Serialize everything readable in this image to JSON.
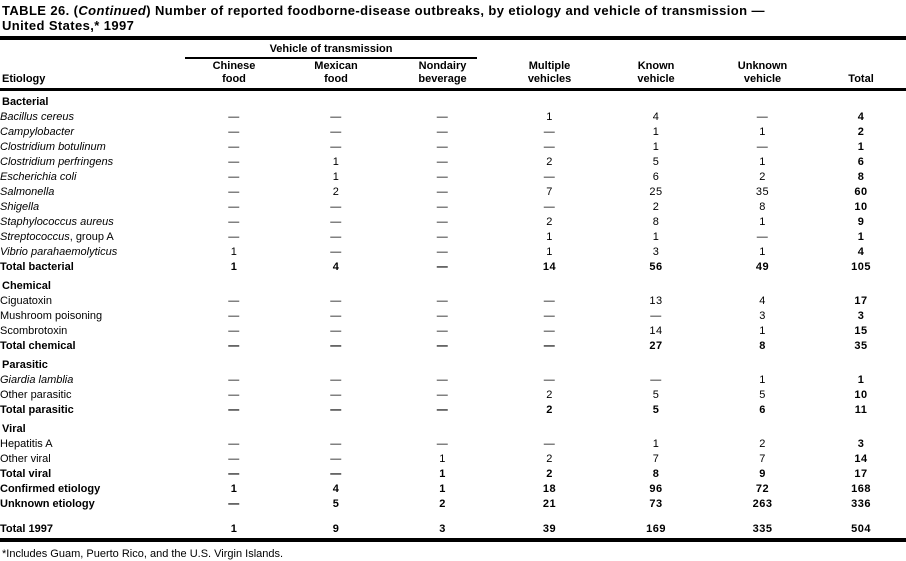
{
  "title": {
    "line1_part1": "TABLE 26. (",
    "line1_italic": "Continued",
    "line1_part2": ") Number of reported foodborne-disease outbreaks, by etiology and vehicle of transmission —",
    "line2": "United States,* 1997"
  },
  "header": {
    "group_label": "Vehicle of transmission",
    "etiology_label": "Etiology",
    "columns": [
      {
        "line1": "Chinese",
        "line2": "food"
      },
      {
        "line1": "Mexican",
        "line2": "food"
      },
      {
        "line1": "Nondairy",
        "line2": "beverage"
      },
      {
        "line1": "Multiple",
        "line2": "vehicles"
      },
      {
        "line1": "Known",
        "line2": "vehicle"
      },
      {
        "line1": "Unknown",
        "line2": "vehicle"
      },
      {
        "line1": "",
        "line2": "Total"
      }
    ]
  },
  "sections": [
    {
      "label": "Bacterial",
      "rows": [
        {
          "name": "Bacillus cereus",
          "suffix": "",
          "italic": true,
          "bold": false,
          "indent": true,
          "values": [
            "—",
            "—",
            "—",
            "1",
            "4",
            "—",
            "4"
          ]
        },
        {
          "name": "Campylobacter",
          "suffix": "",
          "italic": true,
          "bold": false,
          "indent": true,
          "values": [
            "—",
            "—",
            "—",
            "—",
            "1",
            "1",
            "2"
          ]
        },
        {
          "name": "Clostridium botulinum",
          "suffix": "",
          "italic": true,
          "bold": false,
          "indent": true,
          "values": [
            "—",
            "—",
            "—",
            "—",
            "1",
            "—",
            "1"
          ]
        },
        {
          "name": "Clostridium perfringens",
          "suffix": "",
          "italic": true,
          "bold": false,
          "indent": true,
          "values": [
            "—",
            "1",
            "—",
            "2",
            "5",
            "1",
            "6"
          ]
        },
        {
          "name": "Escherichia coli",
          "suffix": "",
          "italic": true,
          "bold": false,
          "indent": true,
          "values": [
            "—",
            "1",
            "—",
            "—",
            "6",
            "2",
            "8"
          ]
        },
        {
          "name": "Salmonella",
          "suffix": "",
          "italic": true,
          "bold": false,
          "indent": true,
          "values": [
            "—",
            "2",
            "—",
            "7",
            "25",
            "35",
            "60"
          ]
        },
        {
          "name": "Shigella",
          "suffix": "",
          "italic": true,
          "bold": false,
          "indent": true,
          "values": [
            "—",
            "—",
            "—",
            "—",
            "2",
            "8",
            "10"
          ]
        },
        {
          "name": "Staphylococcus aureus",
          "suffix": "",
          "italic": true,
          "bold": false,
          "indent": true,
          "values": [
            "—",
            "—",
            "—",
            "2",
            "8",
            "1",
            "9"
          ]
        },
        {
          "name": "Streptococcus",
          "suffix": ", group A",
          "italic": true,
          "bold": false,
          "indent": true,
          "values": [
            "—",
            "—",
            "—",
            "1",
            "1",
            "—",
            "1"
          ]
        },
        {
          "name": "Vibrio parahaemolyticus",
          "suffix": "",
          "italic": true,
          "bold": false,
          "indent": true,
          "values": [
            "1",
            "—",
            "—",
            "1",
            "3",
            "1",
            "4"
          ]
        },
        {
          "name": "Total bacterial",
          "suffix": "",
          "italic": false,
          "bold": true,
          "indent": true,
          "values": [
            "1",
            "4",
            "—",
            "14",
            "56",
            "49",
            "105"
          ]
        }
      ]
    },
    {
      "label": "Chemical",
      "rows": [
        {
          "name": "Ciguatoxin",
          "suffix": "",
          "italic": false,
          "bold": false,
          "indent": true,
          "values": [
            "—",
            "—",
            "—",
            "—",
            "13",
            "4",
            "17"
          ]
        },
        {
          "name": "Mushroom poisoning",
          "suffix": "",
          "italic": false,
          "bold": false,
          "indent": true,
          "values": [
            "—",
            "—",
            "—",
            "—",
            "—",
            "3",
            "3"
          ]
        },
        {
          "name": "Scombrotoxin",
          "suffix": "",
          "italic": false,
          "bold": false,
          "indent": true,
          "values": [
            "—",
            "—",
            "—",
            "—",
            "14",
            "1",
            "15"
          ]
        },
        {
          "name": "Total chemical",
          "suffix": "",
          "italic": false,
          "bold": true,
          "indent": true,
          "values": [
            "—",
            "—",
            "—",
            "—",
            "27",
            "8",
            "35"
          ]
        }
      ]
    },
    {
      "label": "Parasitic",
      "rows": [
        {
          "name": "Giardia lamblia",
          "suffix": "",
          "italic": true,
          "bold": false,
          "indent": true,
          "values": [
            "—",
            "—",
            "—",
            "—",
            "—",
            "1",
            "1"
          ]
        },
        {
          "name": "Other parasitic",
          "suffix": "",
          "italic": false,
          "bold": false,
          "indent": true,
          "values": [
            "—",
            "—",
            "—",
            "2",
            "5",
            "5",
            "10"
          ]
        },
        {
          "name": "Total parasitic",
          "suffix": "",
          "italic": false,
          "bold": true,
          "indent": true,
          "values": [
            "—",
            "—",
            "—",
            "2",
            "5",
            "6",
            "11"
          ]
        }
      ]
    },
    {
      "label": "Viral",
      "rows": [
        {
          "name": "Hepatitis A",
          "suffix": "",
          "italic": false,
          "bold": false,
          "indent": true,
          "values": [
            "—",
            "—",
            "—",
            "—",
            "1",
            "2",
            "3"
          ]
        },
        {
          "name": "Other viral",
          "suffix": "",
          "italic": false,
          "bold": false,
          "indent": true,
          "values": [
            "—",
            "—",
            "1",
            "2",
            "7",
            "7",
            "14"
          ]
        },
        {
          "name": "Total viral",
          "suffix": "",
          "italic": false,
          "bold": true,
          "indent": true,
          "values": [
            "—",
            "—",
            "1",
            "2",
            "8",
            "9",
            "17"
          ]
        }
      ]
    }
  ],
  "summary_rows": [
    {
      "name": "Confirmed etiology",
      "suffix": "",
      "italic": false,
      "bold": true,
      "indent": false,
      "values": [
        "1",
        "4",
        "1",
        "18",
        "96",
        "72",
        "168"
      ]
    },
    {
      "name": "Unknown etiology",
      "suffix": "",
      "italic": false,
      "bold": true,
      "indent": false,
      "values": [
        "—",
        "5",
        "2",
        "21",
        "73",
        "263",
        "336"
      ]
    }
  ],
  "total_row": {
    "name": "Total 1997",
    "suffix": "",
    "italic": false,
    "bold": true,
    "indent": false,
    "values": [
      "1",
      "9",
      "3",
      "39",
      "169",
      "335",
      "504"
    ]
  },
  "footnote": "*Includes Guam, Puerto Rico, and the U.S. Virgin Islands.",
  "colors": {
    "text": "#000000",
    "background": "#ffffff"
  }
}
